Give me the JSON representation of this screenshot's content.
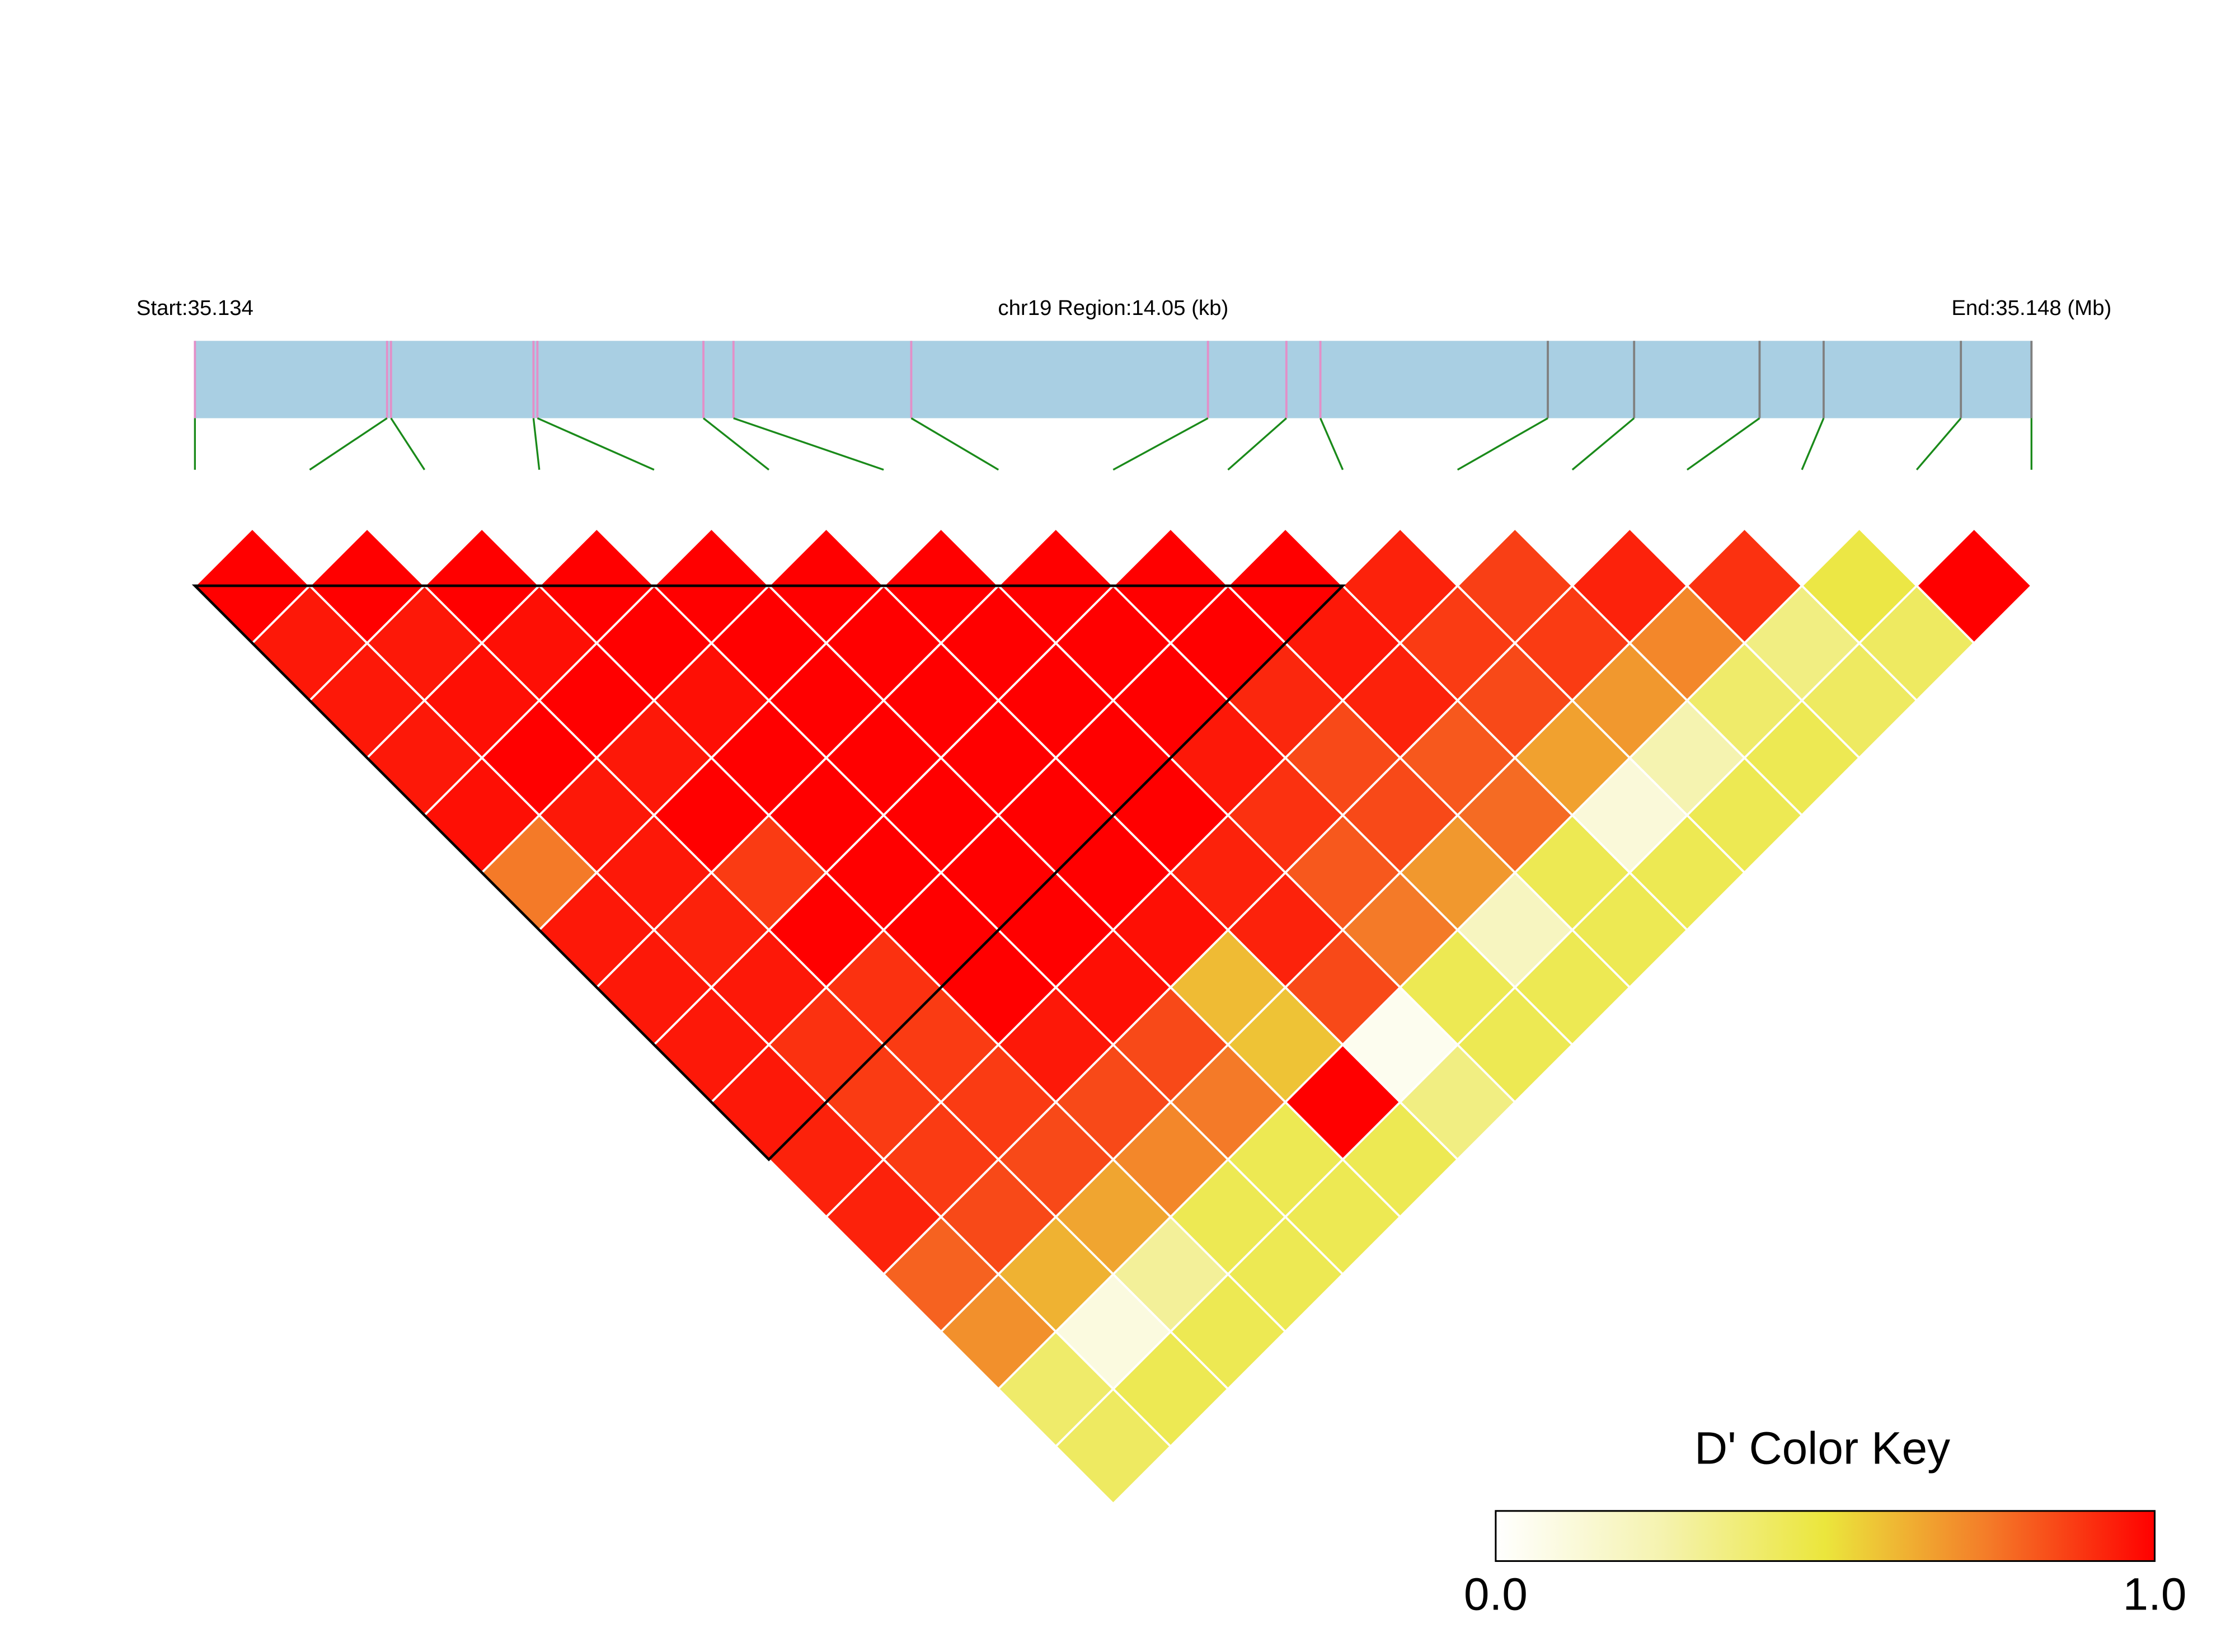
{
  "chart_data": {
    "type": "ld-heatmap",
    "start_label": "Start:35.134",
    "region_label": "chr19 Region:14.05 (kb)",
    "end_label": "End:35.148 (Mb)",
    "xlim": [
      0,
      14.05
    ],
    "region_color": "#a9cfe3",
    "connector_color": "#1a8a1a",
    "snp_positions": [
      0,
      1.47,
      1.5,
      2.59,
      2.62,
      3.89,
      4.12,
      5.48,
      7.75,
      8.35,
      8.61,
      10.35,
      11.01,
      11.97,
      12.46,
      13.51,
      14.05
    ],
    "snp_colors": [
      "#e38fc8",
      "#e38fc8",
      "#e38fc8",
      "#e38fc8",
      "#e38fc8",
      "#e38fc8",
      "#e38fc8",
      "#e38fc8",
      "#e38fc8",
      "#e38fc8",
      "#e38fc8",
      "#808080",
      "#808080",
      "#808080",
      "#808080",
      "#808080",
      "#808080"
    ],
    "values": [
      [
        1,
        1,
        1,
        1,
        1,
        1,
        1,
        1,
        1,
        1,
        0.93,
        0.87,
        0.93,
        0.9,
        0.48,
        1
      ],
      [
        0.95,
        0.95,
        0.97,
        1,
        1,
        1,
        1,
        1,
        1,
        0.95,
        0.88,
        0.88,
        0.72,
        0.35,
        0.42
      ],
      [
        0.95,
        0.97,
        1,
        0.97,
        1,
        1,
        1,
        1,
        0.92,
        0.93,
        0.85,
        0.68,
        0.4,
        0.42
      ],
      [
        0.95,
        1,
        0.95,
        1,
        1,
        1,
        1,
        0.95,
        0.85,
        0.82,
        0.66,
        0.25,
        0.45
      ],
      [
        0.97,
        0.95,
        1,
        1,
        1,
        1,
        1,
        0.9,
        0.85,
        0.78,
        0.12,
        0.45
      ],
      [
        0.75,
        0.95,
        0.88,
        1,
        1,
        1,
        0.93,
        0.82,
        0.68,
        0.45,
        0.45
      ],
      [
        0.95,
        0.93,
        1,
        1,
        1,
        0.97,
        0.93,
        0.75,
        0.2,
        0.45
      ],
      [
        0.95,
        0.95,
        0.9,
        1,
        0.97,
        0.6,
        0.85,
        0.45,
        0.45
      ],
      [
        0.95,
        0.9,
        0.88,
        0.95,
        0.85,
        0.58,
        0.05,
        0.45
      ],
      [
        0.95,
        0.88,
        0.88,
        0.85,
        0.75,
        1,
        0.35
      ],
      [
        0.93,
        0.88,
        0.85,
        0.72,
        0.45,
        0.45
      ],
      [
        0.93,
        0.85,
        0.65,
        0.45,
        0.45
      ],
      [
        0.8,
        0.62,
        0.3,
        0.45
      ],
      [
        0.7,
        0.1,
        0.45
      ],
      [
        0.4,
        0.45
      ],
      [
        0.42
      ]
    ],
    "blocks": [
      {
        "start": 0,
        "end": 10
      }
    ],
    "color_key": {
      "title": "D' Color Key",
      "colors": [
        "#ffffff",
        "#f5f3b0",
        "#ebe63c",
        "#f47a28",
        "#ff0000"
      ],
      "ticks": [
        {
          "value": 0,
          "label": "0.0"
        },
        {
          "value": 1,
          "label": "1.0"
        }
      ]
    }
  }
}
